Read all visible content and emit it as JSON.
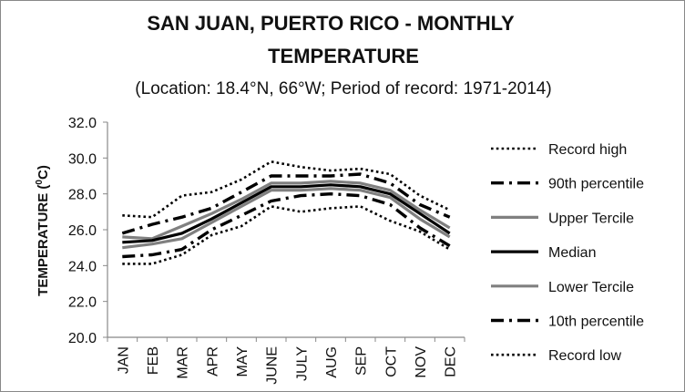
{
  "chart_data": {
    "type": "line",
    "title": [
      "SAN JUAN, PUERTO RICO - MONTHLY",
      "TEMPERATURE"
    ],
    "subtitle": "(Location: 18.4°N, 66°W; Period of record: 1971-2014)",
    "ylabel_main": "TEMPERATURE (",
    "ylabel_sup": "0",
    "ylabel_tail": "C)",
    "xlabel": "",
    "categories": [
      "JAN",
      "FEB",
      "MAR",
      "APR",
      "MAY",
      "JUNE",
      "JULY",
      "AUG",
      "SEP",
      "OCT",
      "NOV",
      "DEC"
    ],
    "ylim": [
      20.0,
      32.0
    ],
    "yticks": [
      "20.0",
      "22.0",
      "24.0",
      "26.0",
      "28.0",
      "30.0",
      "32.0"
    ],
    "grid": false,
    "legend_position": "right",
    "series": [
      {
        "name": "Record high",
        "style": "dotted",
        "color": "#000000",
        "values": [
          26.8,
          26.7,
          27.9,
          28.1,
          28.8,
          29.8,
          29.5,
          29.3,
          29.4,
          29.1,
          27.9,
          27.1
        ]
      },
      {
        "name": "90th percentile",
        "style": "dashdot",
        "color": "#000000",
        "values": [
          25.8,
          26.3,
          26.7,
          27.2,
          28.1,
          29.0,
          29.0,
          29.0,
          29.1,
          28.6,
          27.4,
          26.7
        ]
      },
      {
        "name": "Upper Tercile",
        "style": "solid",
        "color": "#808080",
        "values": [
          25.6,
          25.5,
          26.2,
          26.9,
          27.7,
          28.6,
          28.6,
          28.7,
          28.6,
          28.2,
          27.1,
          26.1
        ]
      },
      {
        "name": "Median",
        "style": "solid",
        "color": "#000000",
        "values": [
          25.3,
          25.4,
          25.8,
          26.6,
          27.5,
          28.4,
          28.4,
          28.5,
          28.4,
          28.0,
          26.9,
          25.8
        ]
      },
      {
        "name": "Lower Tercile",
        "style": "solid",
        "color": "#808080",
        "values": [
          25.0,
          25.2,
          25.5,
          26.4,
          27.3,
          28.2,
          28.2,
          28.3,
          28.2,
          27.8,
          26.6,
          25.6
        ]
      },
      {
        "name": "10th percentile",
        "style": "dashdot",
        "color": "#000000",
        "values": [
          24.5,
          24.6,
          24.9,
          26.0,
          26.8,
          27.6,
          27.9,
          28.0,
          27.9,
          27.4,
          26.1,
          25.1
        ]
      },
      {
        "name": "Record low",
        "style": "dotted",
        "color": "#000000",
        "values": [
          24.1,
          24.1,
          24.6,
          25.7,
          26.2,
          27.3,
          27.0,
          27.2,
          27.3,
          26.5,
          25.9,
          24.9
        ]
      }
    ]
  }
}
